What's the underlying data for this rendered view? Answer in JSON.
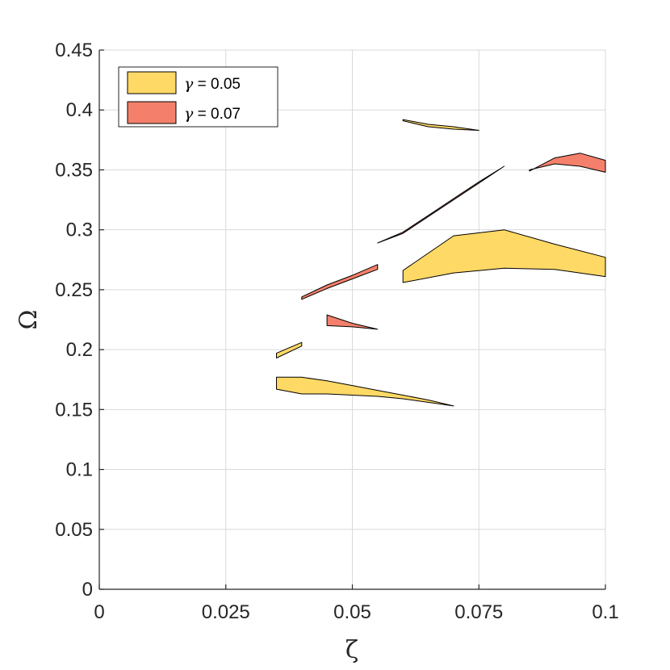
{
  "chart_data": {
    "type": "area",
    "title": "",
    "xlabel": "ζ",
    "ylabel": "Ω",
    "xlim": [
      0,
      0.1
    ],
    "ylim": [
      0,
      0.45
    ],
    "x_ticks": [
      0,
      0.025,
      0.05,
      0.075,
      0.1
    ],
    "x_tick_labels": [
      "0",
      "0.025",
      "0.05",
      "0.075",
      "0.1"
    ],
    "y_ticks": [
      0,
      0.05,
      0.1,
      0.15,
      0.2,
      0.25,
      0.3,
      0.35,
      0.4,
      0.45
    ],
    "y_tick_labels": [
      "0",
      "0.05",
      "0.1",
      "0.15",
      "0.2",
      "0.25",
      "0.3",
      "0.35",
      "0.4",
      "0.45"
    ],
    "grid": true,
    "legend_position": "top-left",
    "series": [
      {
        "name": "γ = 0.05",
        "legend_symbol": "γ",
        "legend_value": " = 0.05",
        "color": "#FFD966",
        "regions": [
          [
            [
              0.035,
              0.177
            ],
            [
              0.04,
              0.177
            ],
            [
              0.045,
              0.174
            ],
            [
              0.05,
              0.17
            ],
            [
              0.055,
              0.166
            ],
            [
              0.06,
              0.162
            ],
            [
              0.065,
              0.158
            ],
            [
              0.07,
              0.153
            ],
            [
              0.065,
              0.156
            ],
            [
              0.06,
              0.159
            ],
            [
              0.055,
              0.161
            ],
            [
              0.05,
              0.162
            ],
            [
              0.045,
              0.163
            ],
            [
              0.04,
              0.163
            ],
            [
              0.035,
              0.167
            ]
          ],
          [
            [
              0.035,
              0.197
            ],
            [
              0.04,
              0.206
            ],
            [
              0.04,
              0.203
            ],
            [
              0.035,
              0.193
            ]
          ],
          [
            [
              0.06,
              0.266
            ],
            [
              0.07,
              0.295
            ],
            [
              0.08,
              0.3
            ],
            [
              0.09,
              0.288
            ],
            [
              0.1,
              0.277
            ],
            [
              0.1,
              0.261
            ],
            [
              0.09,
              0.267
            ],
            [
              0.08,
              0.268
            ],
            [
              0.07,
              0.264
            ],
            [
              0.06,
              0.256
            ]
          ],
          [
            [
              0.06,
              0.392
            ],
            [
              0.065,
              0.388
            ],
            [
              0.07,
              0.386
            ],
            [
              0.075,
              0.383
            ],
            [
              0.07,
              0.384
            ],
            [
              0.065,
              0.386
            ],
            [
              0.06,
              0.391
            ]
          ]
        ]
      },
      {
        "name": "γ = 0.07",
        "legend_symbol": "γ",
        "legend_value": " = 0.07",
        "color": "#F4806B",
        "regions": [
          [
            [
              0.04,
              0.244
            ],
            [
              0.045,
              0.254
            ],
            [
              0.05,
              0.262
            ],
            [
              0.055,
              0.271
            ],
            [
              0.055,
              0.267
            ],
            [
              0.05,
              0.259
            ],
            [
              0.045,
              0.251
            ],
            [
              0.04,
              0.242
            ]
          ],
          [
            [
              0.045,
              0.229
            ],
            [
              0.05,
              0.222
            ],
            [
              0.055,
              0.217
            ],
            [
              0.05,
              0.219
            ],
            [
              0.045,
              0.22
            ]
          ],
          [
            [
              0.085,
              0.349
            ],
            [
              0.09,
              0.36
            ],
            [
              0.095,
              0.364
            ],
            [
              0.1,
              0.358
            ],
            [
              0.1,
              0.348
            ],
            [
              0.095,
              0.353
            ],
            [
              0.09,
              0.355
            ],
            [
              0.085,
              0.35
            ]
          ],
          [
            [
              0.055,
              0.289
            ],
            [
              0.06,
              0.298
            ],
            [
              0.065,
              0.312
            ],
            [
              0.07,
              0.326
            ],
            [
              0.075,
              0.34
            ],
            [
              0.08,
              0.353
            ],
            [
              0.075,
              0.339
            ],
            [
              0.07,
              0.325
            ],
            [
              0.065,
              0.311
            ],
            [
              0.06,
              0.297
            ]
          ]
        ]
      }
    ]
  }
}
